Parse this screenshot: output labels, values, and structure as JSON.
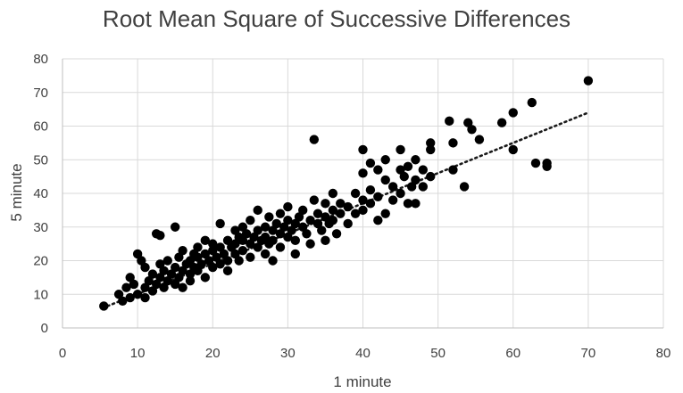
{
  "chart_data": {
    "type": "scatter",
    "title": "Root Mean Square of Successive Differences",
    "xlabel": "1 minute",
    "ylabel": "5 minute",
    "xlim": [
      0,
      80
    ],
    "ylim": [
      0,
      80
    ],
    "xticks": [
      "0",
      "10",
      "20",
      "30",
      "40",
      "50",
      "60",
      "70",
      "80"
    ],
    "yticks": [
      "0",
      "10",
      "20",
      "30",
      "40",
      "50",
      "60",
      "70",
      "80"
    ],
    "grid": true,
    "legend": "none",
    "marker_color": "#000000",
    "trendline": {
      "type": "linear",
      "style": "dotted",
      "x": [
        6,
        70
      ],
      "y": [
        6.5,
        64
      ]
    },
    "series": [
      {
        "values": [
          {
            "x": 5.5,
            "y": 6.5
          },
          {
            "x": 7.5,
            "y": 10
          },
          {
            "x": 8,
            "y": 8
          },
          {
            "x": 8.5,
            "y": 12
          },
          {
            "x": 9,
            "y": 15
          },
          {
            "x": 9,
            "y": 9
          },
          {
            "x": 9.5,
            "y": 13
          },
          {
            "x": 10,
            "y": 22
          },
          {
            "x": 10,
            "y": 10
          },
          {
            "x": 10.5,
            "y": 20
          },
          {
            "x": 11,
            "y": 18
          },
          {
            "x": 11,
            "y": 12
          },
          {
            "x": 11,
            "y": 9
          },
          {
            "x": 11.5,
            "y": 14
          },
          {
            "x": 12,
            "y": 16
          },
          {
            "x": 12,
            "y": 11
          },
          {
            "x": 12.5,
            "y": 28
          },
          {
            "x": 12.5,
            "y": 13
          },
          {
            "x": 13,
            "y": 27.5
          },
          {
            "x": 13,
            "y": 15
          },
          {
            "x": 13,
            "y": 19
          },
          {
            "x": 13.5,
            "y": 17
          },
          {
            "x": 13.5,
            "y": 12
          },
          {
            "x": 14,
            "y": 14
          },
          {
            "x": 14,
            "y": 20
          },
          {
            "x": 14.5,
            "y": 16
          },
          {
            "x": 15,
            "y": 30
          },
          {
            "x": 15,
            "y": 18
          },
          {
            "x": 15,
            "y": 13
          },
          {
            "x": 15.5,
            "y": 21
          },
          {
            "x": 15.5,
            "y": 15
          },
          {
            "x": 16,
            "y": 17
          },
          {
            "x": 16,
            "y": 23
          },
          {
            "x": 16,
            "y": 12
          },
          {
            "x": 16.5,
            "y": 19
          },
          {
            "x": 17,
            "y": 20
          },
          {
            "x": 17,
            "y": 16
          },
          {
            "x": 17,
            "y": 14
          },
          {
            "x": 17.5,
            "y": 22
          },
          {
            "x": 17.5,
            "y": 18
          },
          {
            "x": 18,
            "y": 21
          },
          {
            "x": 18,
            "y": 17
          },
          {
            "x": 18,
            "y": 24
          },
          {
            "x": 18.5,
            "y": 19
          },
          {
            "x": 19,
            "y": 22
          },
          {
            "x": 19,
            "y": 15
          },
          {
            "x": 19,
            "y": 26
          },
          {
            "x": 19.5,
            "y": 20
          },
          {
            "x": 20,
            "y": 23
          },
          {
            "x": 20,
            "y": 18
          },
          {
            "x": 20,
            "y": 25
          },
          {
            "x": 20.5,
            "y": 21
          },
          {
            "x": 21,
            "y": 31
          },
          {
            "x": 21,
            "y": 24
          },
          {
            "x": 21,
            "y": 19
          },
          {
            "x": 21.5,
            "y": 22
          },
          {
            "x": 22,
            "y": 26
          },
          {
            "x": 22,
            "y": 20
          },
          {
            "x": 22,
            "y": 17
          },
          {
            "x": 22.5,
            "y": 24
          },
          {
            "x": 23,
            "y": 29
          },
          {
            "x": 23,
            "y": 25
          },
          {
            "x": 23,
            "y": 22
          },
          {
            "x": 23.5,
            "y": 27
          },
          {
            "x": 23.5,
            "y": 20
          },
          {
            "x": 24,
            "y": 30
          },
          {
            "x": 24,
            "y": 26
          },
          {
            "x": 24,
            "y": 23
          },
          {
            "x": 24.5,
            "y": 28
          },
          {
            "x": 25,
            "y": 25
          },
          {
            "x": 25,
            "y": 21
          },
          {
            "x": 25,
            "y": 32
          },
          {
            "x": 25.5,
            "y": 27
          },
          {
            "x": 26,
            "y": 35
          },
          {
            "x": 26,
            "y": 29
          },
          {
            "x": 26,
            "y": 24
          },
          {
            "x": 26.5,
            "y": 26
          },
          {
            "x": 27,
            "y": 30
          },
          {
            "x": 27,
            "y": 27
          },
          {
            "x": 27,
            "y": 22
          },
          {
            "x": 27.5,
            "y": 33
          },
          {
            "x": 27.5,
            "y": 25
          },
          {
            "x": 28,
            "y": 29
          },
          {
            "x": 28,
            "y": 26
          },
          {
            "x": 28,
            "y": 20
          },
          {
            "x": 28.5,
            "y": 31
          },
          {
            "x": 29,
            "y": 28
          },
          {
            "x": 29,
            "y": 34
          },
          {
            "x": 29,
            "y": 24
          },
          {
            "x": 29.5,
            "y": 30
          },
          {
            "x": 30,
            "y": 32
          },
          {
            "x": 30,
            "y": 27
          },
          {
            "x": 30,
            "y": 36
          },
          {
            "x": 30.5,
            "y": 29
          },
          {
            "x": 31,
            "y": 31
          },
          {
            "x": 31,
            "y": 26
          },
          {
            "x": 31,
            "y": 22
          },
          {
            "x": 31.5,
            "y": 33
          },
          {
            "x": 32,
            "y": 30
          },
          {
            "x": 32,
            "y": 35
          },
          {
            "x": 32.5,
            "y": 28
          },
          {
            "x": 33,
            "y": 32
          },
          {
            "x": 33,
            "y": 25
          },
          {
            "x": 33.5,
            "y": 56
          },
          {
            "x": 33.5,
            "y": 38
          },
          {
            "x": 34,
            "y": 31
          },
          {
            "x": 34,
            "y": 34
          },
          {
            "x": 34.5,
            "y": 29
          },
          {
            "x": 35,
            "y": 33
          },
          {
            "x": 35,
            "y": 37
          },
          {
            "x": 35,
            "y": 26
          },
          {
            "x": 35.5,
            "y": 31
          },
          {
            "x": 36,
            "y": 35
          },
          {
            "x": 36,
            "y": 32
          },
          {
            "x": 36,
            "y": 40
          },
          {
            "x": 36.5,
            "y": 28
          },
          {
            "x": 37,
            "y": 34
          },
          {
            "x": 37,
            "y": 37
          },
          {
            "x": 38,
            "y": 31
          },
          {
            "x": 38,
            "y": 36
          },
          {
            "x": 39,
            "y": 40
          },
          {
            "x": 39,
            "y": 34
          },
          {
            "x": 40,
            "y": 53
          },
          {
            "x": 40,
            "y": 46
          },
          {
            "x": 40,
            "y": 38
          },
          {
            "x": 40,
            "y": 35
          },
          {
            "x": 41,
            "y": 49
          },
          {
            "x": 41,
            "y": 41
          },
          {
            "x": 41,
            "y": 37
          },
          {
            "x": 42,
            "y": 47
          },
          {
            "x": 42,
            "y": 39
          },
          {
            "x": 42,
            "y": 32
          },
          {
            "x": 43,
            "y": 44
          },
          {
            "x": 43,
            "y": 34
          },
          {
            "x": 43,
            "y": 50
          },
          {
            "x": 44,
            "y": 42
          },
          {
            "x": 44,
            "y": 38
          },
          {
            "x": 45,
            "y": 53
          },
          {
            "x": 45,
            "y": 47
          },
          {
            "x": 45,
            "y": 40
          },
          {
            "x": 45.5,
            "y": 45
          },
          {
            "x": 46,
            "y": 48
          },
          {
            "x": 46,
            "y": 37
          },
          {
            "x": 46.5,
            "y": 42
          },
          {
            "x": 47,
            "y": 50
          },
          {
            "x": 47,
            "y": 44
          },
          {
            "x": 47,
            "y": 37
          },
          {
            "x": 48,
            "y": 47
          },
          {
            "x": 48,
            "y": 42
          },
          {
            "x": 49,
            "y": 55
          },
          {
            "x": 49,
            "y": 53
          },
          {
            "x": 49,
            "y": 45
          },
          {
            "x": 51.5,
            "y": 61.5
          },
          {
            "x": 52,
            "y": 55
          },
          {
            "x": 52,
            "y": 47
          },
          {
            "x": 53.5,
            "y": 42
          },
          {
            "x": 54,
            "y": 61
          },
          {
            "x": 54.5,
            "y": 59
          },
          {
            "x": 55.5,
            "y": 56
          },
          {
            "x": 58.5,
            "y": 61
          },
          {
            "x": 60,
            "y": 64
          },
          {
            "x": 60,
            "y": 53
          },
          {
            "x": 62.5,
            "y": 67
          },
          {
            "x": 63,
            "y": 49
          },
          {
            "x": 64.5,
            "y": 49
          },
          {
            "x": 64.5,
            "y": 48
          },
          {
            "x": 70,
            "y": 73.5
          }
        ]
      }
    ]
  }
}
